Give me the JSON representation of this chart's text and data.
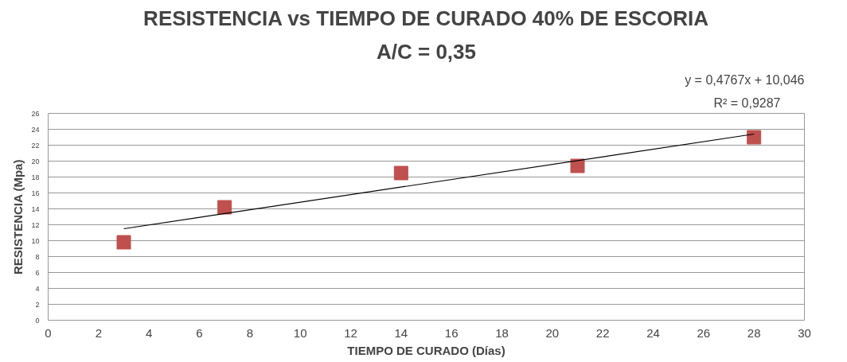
{
  "chart_data": {
    "type": "scatter",
    "title": "RESISTENCIA vs TIEMPO DE CURADO 40% DE ESCORIA",
    "subtitle": "A/C = 0,35",
    "xlabel": "TIEMPO DE CURADO (Días)",
    "ylabel": "RESISTENCIA (Mpa)",
    "x": [
      3,
      7,
      14,
      21,
      28
    ],
    "series": [
      {
        "color": "#c0504d",
        "values": [
          9.8,
          14.2,
          18.5,
          19.4,
          23.0
        ],
        "marker": "square"
      },
      {
        "type": "line",
        "color": "#000000",
        "x": [
          3,
          28
        ],
        "values": [
          11.5,
          23.4
        ],
        "marker": "none"
      }
    ],
    "annotations": [
      "y = 0,4767x + 10,046",
      "R² = 0,9287"
    ],
    "xlim": [
      0,
      30
    ],
    "xticks": [
      0,
      2,
      4,
      6,
      8,
      10,
      12,
      14,
      16,
      18,
      20,
      22,
      24,
      26,
      28,
      30
    ],
    "ylim": [
      0,
      26
    ],
    "yticks": [
      0,
      2,
      4,
      6,
      8,
      10,
      12,
      14,
      16,
      18,
      20,
      22,
      24,
      26
    ],
    "grid": "y"
  }
}
